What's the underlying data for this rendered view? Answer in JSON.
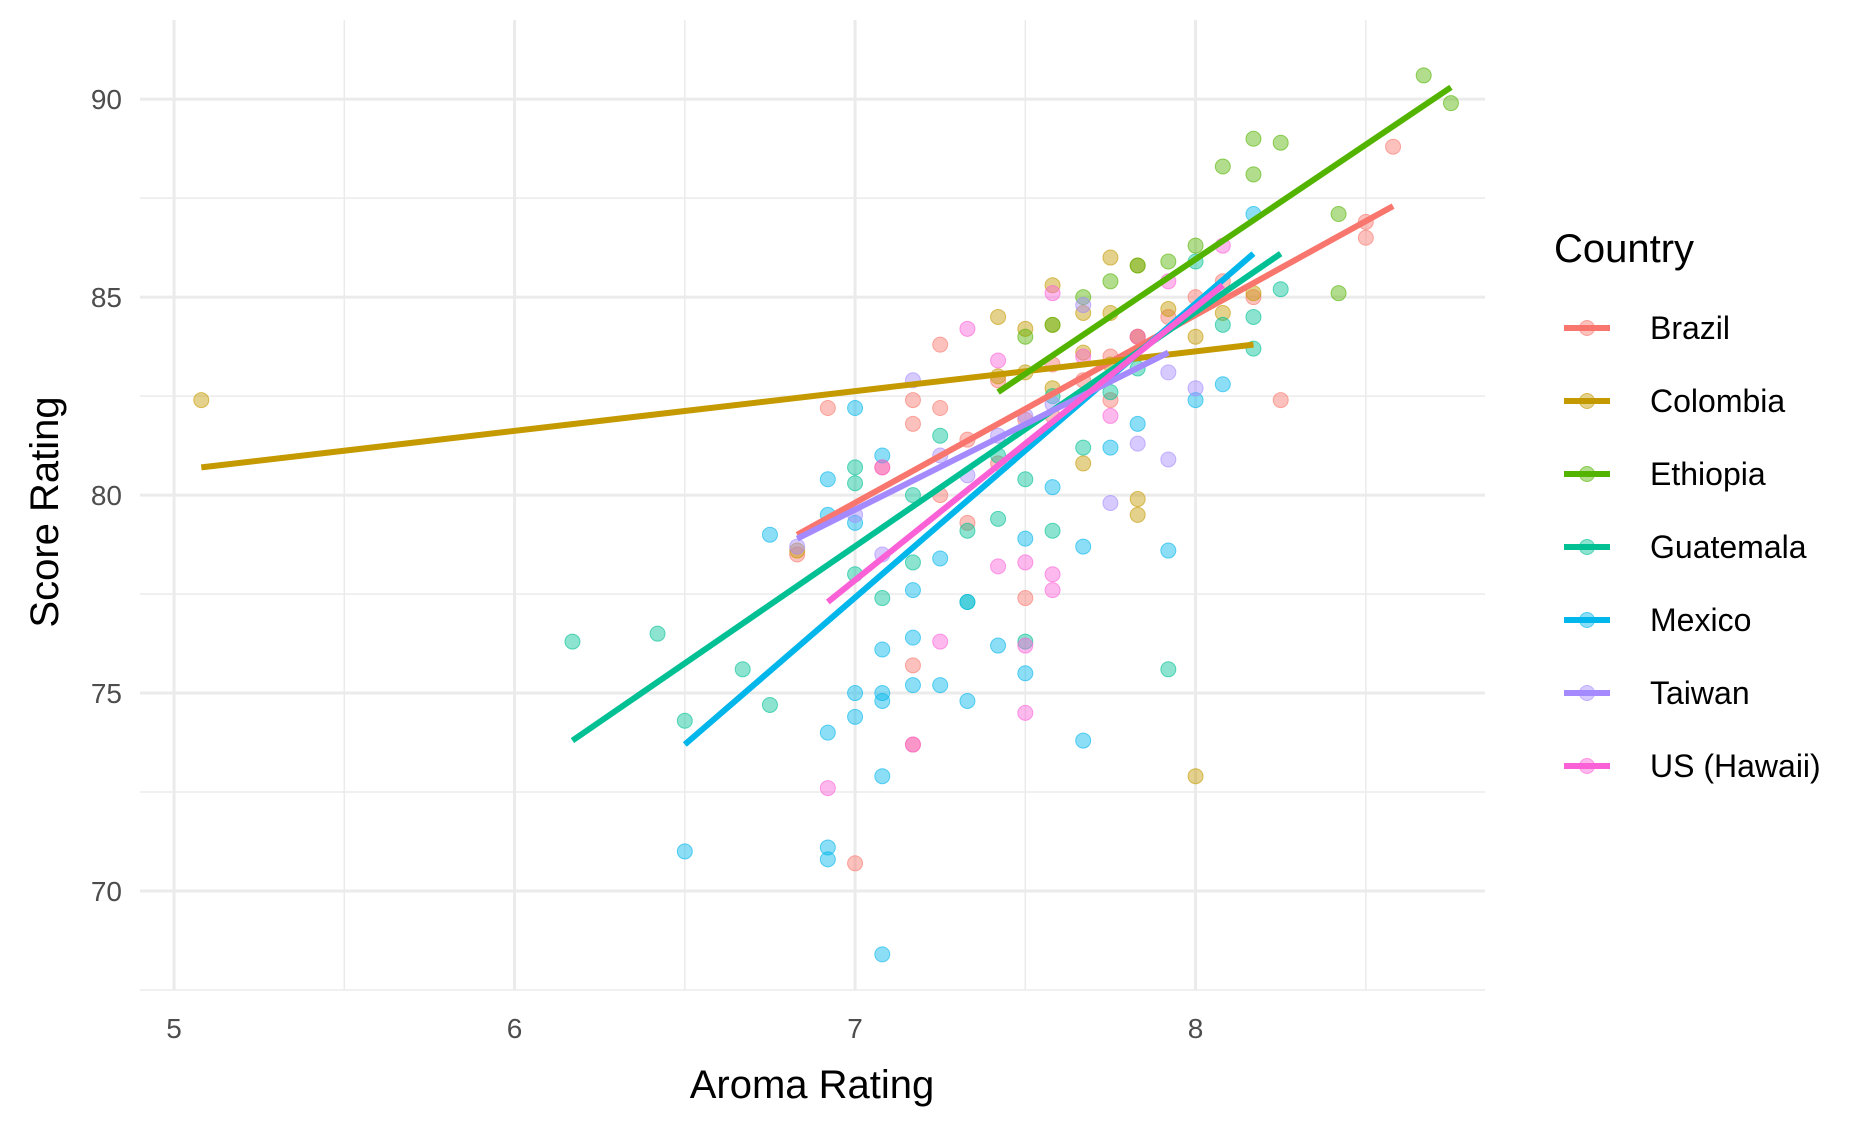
{
  "chart_data": {
    "type": "scatter",
    "title": "",
    "xlabel": "Aroma Rating",
    "ylabel": "Score Rating",
    "xlim": [
      4.9,
      8.85
    ],
    "ylim": [
      67.5,
      92
    ],
    "xticks": [
      5,
      6,
      7,
      8
    ],
    "yticks": [
      70,
      75,
      80,
      85,
      90
    ],
    "grid": true,
    "legend": {
      "title": "Country",
      "position": "right"
    },
    "series": [
      {
        "name": "Brazil",
        "color": "#F8766D",
        "trend": {
          "x": [
            6.83,
            8.58
          ],
          "y": [
            79.0,
            87.3
          ]
        },
        "points": [
          [
            6.83,
            78.5
          ],
          [
            6.92,
            82.2
          ],
          [
            7.0,
            70.7
          ],
          [
            7.08,
            80.7
          ],
          [
            7.17,
            82.4
          ],
          [
            7.17,
            81.8
          ],
          [
            7.17,
            75.7
          ],
          [
            7.17,
            73.7
          ],
          [
            7.25,
            83.8
          ],
          [
            7.25,
            82.2
          ],
          [
            7.25,
            80.0
          ],
          [
            7.33,
            81.4
          ],
          [
            7.33,
            79.3
          ],
          [
            7.42,
            82.9
          ],
          [
            7.42,
            80.8
          ],
          [
            7.5,
            77.4
          ],
          [
            7.5,
            81.9
          ],
          [
            7.58,
            83.3
          ],
          [
            7.58,
            82.0
          ],
          [
            7.67,
            82.9
          ],
          [
            7.75,
            83.5
          ],
          [
            7.75,
            82.4
          ],
          [
            7.83,
            84.0
          ],
          [
            7.92,
            84.5
          ],
          [
            8.0,
            85.0
          ],
          [
            8.08,
            85.4
          ],
          [
            8.17,
            85.0
          ],
          [
            8.25,
            82.4
          ],
          [
            8.5,
            86.9
          ],
          [
            8.5,
            86.5
          ],
          [
            8.58,
            88.8
          ]
        ]
      },
      {
        "name": "Colombia",
        "color": "#C49A00",
        "trend": {
          "x": [
            5.08,
            8.17
          ],
          "y": [
            80.7,
            83.8
          ]
        },
        "points": [
          [
            5.08,
            82.4
          ],
          [
            6.83,
            78.6
          ],
          [
            7.42,
            84.5
          ],
          [
            7.42,
            83.0
          ],
          [
            7.5,
            84.2
          ],
          [
            7.5,
            83.1
          ],
          [
            7.58,
            85.3
          ],
          [
            7.58,
            84.3
          ],
          [
            7.58,
            82.7
          ],
          [
            7.67,
            84.6
          ],
          [
            7.67,
            83.6
          ],
          [
            7.67,
            80.8
          ],
          [
            7.75,
            86.0
          ],
          [
            7.75,
            84.6
          ],
          [
            7.75,
            83.3
          ],
          [
            7.83,
            85.8
          ],
          [
            7.83,
            84.0
          ],
          [
            7.83,
            79.9
          ],
          [
            7.83,
            79.5
          ],
          [
            7.92,
            84.7
          ],
          [
            8.0,
            84.0
          ],
          [
            8.0,
            72.9
          ],
          [
            8.08,
            84.6
          ],
          [
            8.17,
            85.1
          ]
        ]
      },
      {
        "name": "Ethiopia",
        "color": "#53B400",
        "trend": {
          "x": [
            7.42,
            8.75
          ],
          "y": [
            82.6,
            90.3
          ]
        },
        "points": [
          [
            7.5,
            84.0
          ],
          [
            7.58,
            84.3
          ],
          [
            7.67,
            85.0
          ],
          [
            7.75,
            85.4
          ],
          [
            7.83,
            85.8
          ],
          [
            7.92,
            85.9
          ],
          [
            8.0,
            86.3
          ],
          [
            8.08,
            88.3
          ],
          [
            8.17,
            89.0
          ],
          [
            8.17,
            88.1
          ],
          [
            8.25,
            88.9
          ],
          [
            8.42,
            87.1
          ],
          [
            8.42,
            85.1
          ],
          [
            8.67,
            90.6
          ],
          [
            8.75,
            89.9
          ]
        ]
      },
      {
        "name": "Guatemala",
        "color": "#00C094",
        "trend": {
          "x": [
            6.17,
            8.25
          ],
          "y": [
            73.8,
            86.1
          ]
        },
        "points": [
          [
            6.17,
            76.3
          ],
          [
            6.42,
            76.5
          ],
          [
            6.5,
            74.3
          ],
          [
            6.67,
            75.6
          ],
          [
            6.75,
            74.7
          ],
          [
            7.0,
            80.7
          ],
          [
            7.0,
            80.3
          ],
          [
            7.0,
            78.0
          ],
          [
            7.08,
            77.4
          ],
          [
            7.17,
            80.0
          ],
          [
            7.17,
            78.3
          ],
          [
            7.25,
            81.5
          ],
          [
            7.33,
            79.1
          ],
          [
            7.33,
            77.3
          ],
          [
            7.42,
            81.0
          ],
          [
            7.42,
            79.4
          ],
          [
            7.5,
            76.3
          ],
          [
            7.5,
            80.4
          ],
          [
            7.58,
            82.5
          ],
          [
            7.58,
            79.1
          ],
          [
            7.67,
            81.2
          ],
          [
            7.75,
            82.6
          ],
          [
            7.83,
            83.2
          ],
          [
            7.92,
            75.6
          ],
          [
            8.0,
            85.9
          ],
          [
            8.08,
            84.3
          ],
          [
            8.17,
            83.7
          ],
          [
            8.17,
            84.5
          ],
          [
            8.25,
            85.2
          ]
        ]
      },
      {
        "name": "Mexico",
        "color": "#00B6EB",
        "trend": {
          "x": [
            6.5,
            8.17
          ],
          "y": [
            73.7,
            86.1
          ]
        },
        "points": [
          [
            6.5,
            71.0
          ],
          [
            6.75,
            79.0
          ],
          [
            6.92,
            80.4
          ],
          [
            6.92,
            79.5
          ],
          [
            6.92,
            74.0
          ],
          [
            6.92,
            71.1
          ],
          [
            6.92,
            70.8
          ],
          [
            7.0,
            82.2
          ],
          [
            7.0,
            75.0
          ],
          [
            7.0,
            74.4
          ],
          [
            7.0,
            79.3
          ],
          [
            7.08,
            81.0
          ],
          [
            7.08,
            76.1
          ],
          [
            7.08,
            75.0
          ],
          [
            7.08,
            74.8
          ],
          [
            7.08,
            72.9
          ],
          [
            7.08,
            68.4
          ],
          [
            7.17,
            76.4
          ],
          [
            7.17,
            75.2
          ],
          [
            7.17,
            77.6
          ],
          [
            7.25,
            75.2
          ],
          [
            7.25,
            78.4
          ],
          [
            7.33,
            74.8
          ],
          [
            7.33,
            77.3
          ],
          [
            7.42,
            76.2
          ],
          [
            7.5,
            75.5
          ],
          [
            7.5,
            78.9
          ],
          [
            7.58,
            80.2
          ],
          [
            7.67,
            78.7
          ],
          [
            7.67,
            73.8
          ],
          [
            7.75,
            81.2
          ],
          [
            7.83,
            81.8
          ],
          [
            7.92,
            78.6
          ],
          [
            8.0,
            82.4
          ],
          [
            8.08,
            82.8
          ],
          [
            8.17,
            87.1
          ]
        ]
      },
      {
        "name": "Taiwan",
        "color": "#A58AFF",
        "trend": {
          "x": [
            6.83,
            7.92
          ],
          "y": [
            78.9,
            83.6
          ]
        },
        "points": [
          [
            6.83,
            78.7
          ],
          [
            7.0,
            79.5
          ],
          [
            7.08,
            78.5
          ],
          [
            7.17,
            82.9
          ],
          [
            7.25,
            81.0
          ],
          [
            7.33,
            80.5
          ],
          [
            7.42,
            81.5
          ],
          [
            7.5,
            82.0
          ],
          [
            7.58,
            82.3
          ],
          [
            7.67,
            84.8
          ],
          [
            7.75,
            79.8
          ],
          [
            7.83,
            81.3
          ],
          [
            7.92,
            80.9
          ],
          [
            7.92,
            83.1
          ],
          [
            8.0,
            82.7
          ]
        ]
      },
      {
        "name": "US (Hawaii)",
        "color": "#FB61D7",
        "trend": {
          "x": [
            6.92,
            8.08
          ],
          "y": [
            77.3,
            85.3
          ]
        },
        "points": [
          [
            6.92,
            72.6
          ],
          [
            7.08,
            80.7
          ],
          [
            7.17,
            73.7
          ],
          [
            7.25,
            76.3
          ],
          [
            7.33,
            84.2
          ],
          [
            7.42,
            83.4
          ],
          [
            7.42,
            78.2
          ],
          [
            7.5,
            78.3
          ],
          [
            7.5,
            76.2
          ],
          [
            7.5,
            74.5
          ],
          [
            7.58,
            78.0
          ],
          [
            7.58,
            77.6
          ],
          [
            7.58,
            85.1
          ],
          [
            7.67,
            83.5
          ],
          [
            7.75,
            82.0
          ],
          [
            7.83,
            84.0
          ],
          [
            7.92,
            85.4
          ],
          [
            8.08,
            86.3
          ]
        ]
      }
    ]
  }
}
